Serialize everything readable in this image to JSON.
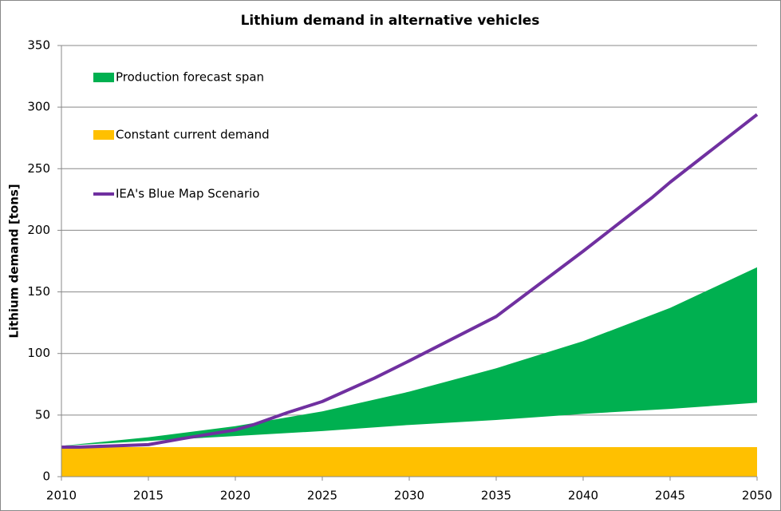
{
  "chart_data": {
    "type": "area",
    "title": "Lithium demand in alternative vehicles",
    "y_label": "Lithium demand [tons]",
    "xlim": [
      2010,
      2050
    ],
    "xticks": [
      2010,
      2015,
      2020,
      2025,
      2030,
      2035,
      2040,
      2045,
      2050
    ],
    "ylim": [
      0,
      350
    ],
    "yticks": [
      0,
      50,
      100,
      150,
      200,
      250,
      300,
      350
    ],
    "grid": true,
    "legend": "upper left",
    "series": [
      {
        "name": "Production forecast span",
        "kind": "band",
        "color": "#00b050",
        "x": [
          2010,
          2015,
          2020,
          2025,
          2030,
          2035,
          2040,
          2045,
          2050
        ],
        "lower": [
          25,
          29,
          33,
          37,
          42,
          46,
          51,
          55,
          60
        ],
        "upper": [
          25,
          32,
          41,
          53,
          69,
          88,
          110,
          137,
          170
        ]
      },
      {
        "name": "Constant current demand",
        "kind": "area",
        "color": "#ffc000",
        "x": [
          2010,
          2050
        ],
        "values": [
          24,
          24
        ]
      },
      {
        "name": "IEA's Blue Map Scenario",
        "kind": "line",
        "color": "#7030a0",
        "x": [
          2010,
          2011,
          2015,
          2017,
          2020,
          2021,
          2023,
          2025,
          2028,
          2030,
          2035,
          2040,
          2044,
          2045,
          2050
        ],
        "values": [
          24,
          24,
          26,
          31,
          38,
          42,
          52,
          61,
          80,
          94,
          130,
          183,
          227,
          239,
          294
        ]
      }
    ]
  }
}
